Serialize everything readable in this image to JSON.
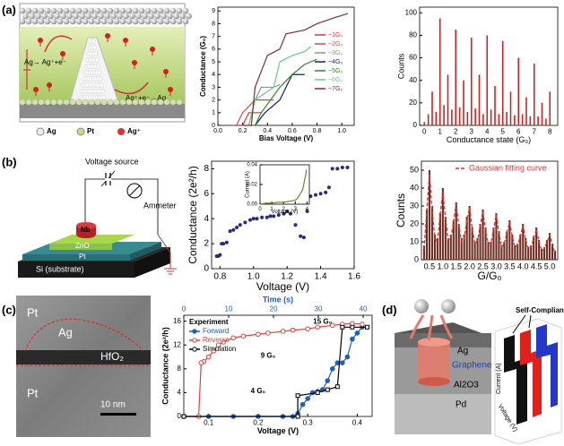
{
  "panel_labels": [
    "(a)",
    "(b)",
    "(c)",
    "(d)"
  ],
  "diagram_a": {
    "oxidation": "Ag→ Ag⁺+e⁻",
    "reduction": "Ag⁺+e⁻→Ag",
    "legend": [
      "Ag",
      "Pt",
      "Ag⁺"
    ]
  },
  "diagram_b": {
    "source": "Voltage source",
    "meter": "Ammeter",
    "layers": [
      "Nb",
      "ZnO",
      "Pt",
      "Si (substrate)"
    ]
  },
  "image_c": {
    "labels": [
      "Pt",
      "Ag",
      "HfO₂",
      "Pt"
    ],
    "scale_bar": "10 nm"
  },
  "diagram_d": {
    "layers": [
      "Ag",
      "Graphene",
      "Al2O3",
      "Pd"
    ],
    "plot_title": "Self-Compliance",
    "z_axis": "Current (A)",
    "x_axis": "Voltage (V)"
  },
  "chart_data": [
    {
      "type": "line",
      "xlabel": "Bias Voltage (V)",
      "ylabel": "Conductance (G₀)",
      "xlim": [
        0,
        1.1
      ],
      "xticks": [
        {
          "value": 0,
          "label": "0.0"
        },
        0.2,
        0.4,
        0.6,
        0.8,
        {
          "value": 1,
          "label": "1.0"
        }
      ],
      "ylim": [
        0,
        9.3
      ],
      "yticks": [
        0,
        1,
        2,
        3,
        4,
        5,
        6,
        7,
        8,
        9
      ],
      "legend": "center right",
      "series": [
        {
          "name": "~1G₀",
          "color": "#e53030",
          "x": [
            0.2,
            0.25,
            0.3,
            0.35
          ],
          "values": [
            0,
            1,
            1,
            1
          ]
        },
        {
          "name": "~2G₀",
          "color": "#c05050",
          "x": [
            0.15,
            0.2,
            0.3,
            0.35,
            0.45
          ],
          "values": [
            0,
            1,
            2,
            2,
            2
          ]
        },
        {
          "name": "~3G₀",
          "color": "#909090",
          "x": [
            0.25,
            0.3,
            0.35,
            0.45,
            0.5
          ],
          "values": [
            0,
            2,
            3,
            3,
            3.2
          ]
        },
        {
          "name": "~4G₀",
          "color": "#1a1a6e",
          "x": [
            0.3,
            0.38,
            0.5,
            0.55,
            0.6,
            0.7
          ],
          "values": [
            0,
            1,
            2,
            3,
            4,
            4
          ]
        },
        {
          "name": "~5G₀",
          "color": "#2e8b2e",
          "x": [
            0.3,
            0.35,
            0.5,
            0.6,
            0.7,
            0.8
          ],
          "values": [
            0,
            1,
            3,
            4,
            4.8,
            5.2
          ]
        },
        {
          "name": "~6G₀",
          "color": "#66cc88",
          "x": [
            0.25,
            0.3,
            0.45,
            0.5,
            0.6,
            0.7,
            0.75
          ],
          "values": [
            0,
            2,
            3,
            5,
            5.5,
            5.8,
            6.2
          ]
        },
        {
          "name": "~7G₀",
          "color": "#7a3030",
          "x": [
            0.2,
            0.27,
            0.3,
            0.4,
            0.5,
            0.55,
            0.7,
            0.8,
            0.95,
            1.05
          ],
          "values": [
            0,
            0,
            3,
            5.5,
            6,
            7.2,
            7.5,
            8,
            8.5,
            8.8
          ]
        }
      ]
    },
    {
      "type": "bar",
      "xlabel": "Conductance state (G₀)",
      "ylabel": "Counts",
      "color": "#cc2222",
      "xlim": [
        -0.3,
        8.5
      ],
      "xticks": [
        0,
        1,
        2,
        3,
        4,
        5,
        6,
        7,
        8
      ],
      "ylim": [
        0,
        105
      ],
      "yticks": [
        0,
        20,
        40,
        60,
        80,
        100
      ],
      "x": [
        0,
        0.25,
        0.5,
        0.75,
        1,
        1.25,
        1.5,
        1.75,
        2,
        2.25,
        2.5,
        2.75,
        3,
        3.25,
        3.5,
        3.75,
        4,
        4.25,
        4.5,
        4.75,
        5,
        5.25,
        5.5,
        5.75,
        6,
        6.25,
        6.5,
        6.75,
        7,
        7.25,
        7.5,
        7.75,
        8
      ],
      "values": [
        3,
        10,
        30,
        12,
        95,
        18,
        45,
        14,
        85,
        16,
        40,
        12,
        78,
        15,
        45,
        10,
        80,
        14,
        35,
        10,
        75,
        12,
        30,
        9,
        60,
        10,
        25,
        8,
        55,
        8,
        20,
        6,
        30
      ]
    },
    {
      "type": "scatter",
      "xlabel": "Voltage (V)",
      "ylabel": "Conductance (2e²/h)",
      "color": "#2a2a80",
      "xlim": [
        0.75,
        1.6
      ],
      "xticks": [
        0.8,
        {
          "value": 1,
          "label": "1.0"
        },
        1.2,
        1.4,
        1.6
      ],
      "ylim": [
        0,
        8.6
      ],
      "yticks": [
        0,
        2,
        4,
        6,
        8
      ],
      "x": [
        0.78,
        0.79,
        0.8,
        0.81,
        0.82,
        0.84,
        0.86,
        0.88,
        0.9,
        0.92,
        0.95,
        0.98,
        1.0,
        1.02,
        1.05,
        1.08,
        1.1,
        1.12,
        1.15,
        1.18,
        1.2,
        1.22,
        1.25,
        1.28,
        1.3,
        1.32,
        1.34,
        1.37,
        1.4,
        1.43,
        1.45,
        1.47,
        1.5,
        1.53,
        1.56
      ],
      "values": [
        1.0,
        1.0,
        1.1,
        2.0,
        2.0,
        2.1,
        3.0,
        3.1,
        3.3,
        3.5,
        3.7,
        3.9,
        4.0,
        4.0,
        4.1,
        4.1,
        4.2,
        4.2,
        4.3,
        4.4,
        4.6,
        4.4,
        3.5,
        2.6,
        2.5,
        4.6,
        5.8,
        5.9,
        6.0,
        6.1,
        6.5,
        8.0,
        8.0,
        8.1,
        8.1
      ]
    },
    {
      "type": "line",
      "xlabel": "Voltage (V)",
      "ylabel": "Current (A)",
      "xlim": [
        0,
        4.2
      ],
      "xticks": [
        0,
        1,
        2,
        3,
        4
      ],
      "ylim": [
        0,
        0.04
      ],
      "yticks": [
        {
          "value": 0,
          "label": "0.00"
        },
        0.02,
        0.04
      ],
      "series": [
        {
          "color": "#7a7a30",
          "x": [
            0,
            0.5,
            1,
            1.5,
            2,
            2.5,
            3,
            3.2,
            3.4,
            3.6,
            3.7,
            3.8,
            3.9,
            3.95
          ],
          "values": [
            0,
            0.001,
            0.001,
            0.002,
            0.002,
            0.003,
            0.004,
            0.006,
            0.01,
            0.014,
            0.018,
            0.025,
            0.03,
            0.035
          ]
        }
      ]
    },
    {
      "type": "bar",
      "xlabel": "G/G₀",
      "ylabel": "Counts",
      "color": "#6b2d20",
      "legend": "upper right",
      "xlim": [
        0.2,
        5.3
      ],
      "xticks": [
        0.5,
        {
          "value": 1,
          "label": "1.0"
        },
        1.5,
        {
          "value": 2,
          "label": "2.0"
        },
        2.5,
        {
          "value": 3,
          "label": "3.0"
        },
        3.5,
        {
          "value": 4,
          "label": "4.0"
        },
        4.5,
        {
          "value": 5,
          "label": "5.0"
        }
      ],
      "ylim": [
        0,
        55
      ],
      "yticks": [
        0,
        10,
        20,
        30,
        40,
        50
      ],
      "x": [
        0.3,
        0.4,
        0.5,
        0.6,
        0.7,
        0.8,
        0.9,
        1.0,
        1.1,
        1.2,
        1.3,
        1.4,
        1.5,
        1.6,
        1.7,
        1.8,
        1.9,
        2.0,
        2.1,
        2.2,
        2.3,
        2.4,
        2.5,
        2.6,
        2.7,
        2.8,
        2.9,
        3.0,
        3.1,
        3.2,
        3.3,
        3.4,
        3.5,
        3.6,
        3.7,
        3.8,
        3.9,
        4.0,
        4.1,
        4.2,
        4.3,
        4.4,
        4.5,
        4.6,
        4.7,
        4.8,
        4.9,
        5.0,
        5.1,
        5.2
      ],
      "values": [
        8,
        28,
        50,
        30,
        14,
        12,
        26,
        40,
        24,
        12,
        14,
        22,
        32,
        20,
        12,
        14,
        24,
        30,
        18,
        10,
        12,
        20,
        28,
        18,
        10,
        10,
        18,
        26,
        16,
        8,
        10,
        16,
        22,
        14,
        8,
        9,
        14,
        20,
        12,
        7,
        8,
        13,
        18,
        11,
        6,
        7,
        11,
        15,
        9,
        5
      ],
      "series": [
        {
          "name": "Gaussian fitting curve",
          "color": "#e03030",
          "dashed": true,
          "values": [
            6,
            27,
            48,
            28,
            12,
            10,
            25,
            38,
            23,
            11,
            12,
            21,
            31,
            19,
            10,
            12,
            22,
            29,
            17,
            9,
            11,
            19,
            27,
            16,
            9,
            9,
            17,
            25,
            15,
            7,
            9,
            15,
            21,
            13,
            7,
            8,
            13,
            19,
            11,
            6,
            7,
            12,
            17,
            10,
            5,
            6,
            10,
            14,
            8,
            4
          ]
        }
      ]
    },
    {
      "type": "line",
      "xlabel": "Voltage (V)",
      "ylabel": "Conductance (2e²/h)",
      "x2label": "Time (s)",
      "xlim": [
        0.05,
        0.43
      ],
      "xticks": [
        0.1,
        0.2,
        0.3,
        0.4
      ],
      "x2lim": [
        0,
        42
      ],
      "x2ticks": [
        0,
        10,
        20,
        30,
        40
      ],
      "ylim": [
        0,
        17
      ],
      "yticks": [
        0,
        4,
        8,
        12,
        16
      ],
      "legend": "upper left",
      "legend_title": "Experiment",
      "annotations": [
        "15 G₀",
        "9 G₀",
        "4 G₀"
      ],
      "series": [
        {
          "name": "Forward",
          "color": "#1f5fbf",
          "marker": "circle",
          "x": [
            0.05,
            0.1,
            0.15,
            0.2,
            0.25,
            0.27,
            0.28,
            0.29,
            0.3,
            0.31,
            0.32,
            0.33,
            0.34,
            0.35,
            0.36,
            0.37,
            0.38,
            0.39,
            0.4,
            0.41
          ],
          "values": [
            0,
            0,
            0,
            0,
            0,
            0,
            0.5,
            2,
            3,
            4,
            4.2,
            4.5,
            6,
            8,
            9,
            9,
            10,
            13,
            14,
            15
          ]
        },
        {
          "name": "Reverse",
          "color": "#e04040",
          "marker": "open-circle",
          "x": [
            0.41,
            0.39,
            0.37,
            0.35,
            0.32,
            0.3,
            0.27,
            0.25,
            0.22,
            0.2,
            0.17,
            0.15,
            0.13,
            0.12,
            0.11,
            0.1,
            0.09,
            0.085,
            0.08,
            0.05
          ],
          "values": [
            15.5,
            15.6,
            15.5,
            15.3,
            15,
            14.7,
            14.5,
            14.3,
            14,
            13.8,
            13.5,
            13.2,
            12.5,
            12,
            11,
            10,
            9.2,
            9,
            0,
            0
          ]
        },
        {
          "name": "Simulation",
          "color": "#000000",
          "marker": "square",
          "x": [
            0.05,
            0.28,
            0.28,
            0.32,
            0.34,
            0.36,
            0.37,
            0.39,
            0.42
          ],
          "values": [
            0,
            0,
            3.5,
            4,
            4.5,
            5,
            15,
            15,
            15
          ]
        }
      ]
    }
  ]
}
